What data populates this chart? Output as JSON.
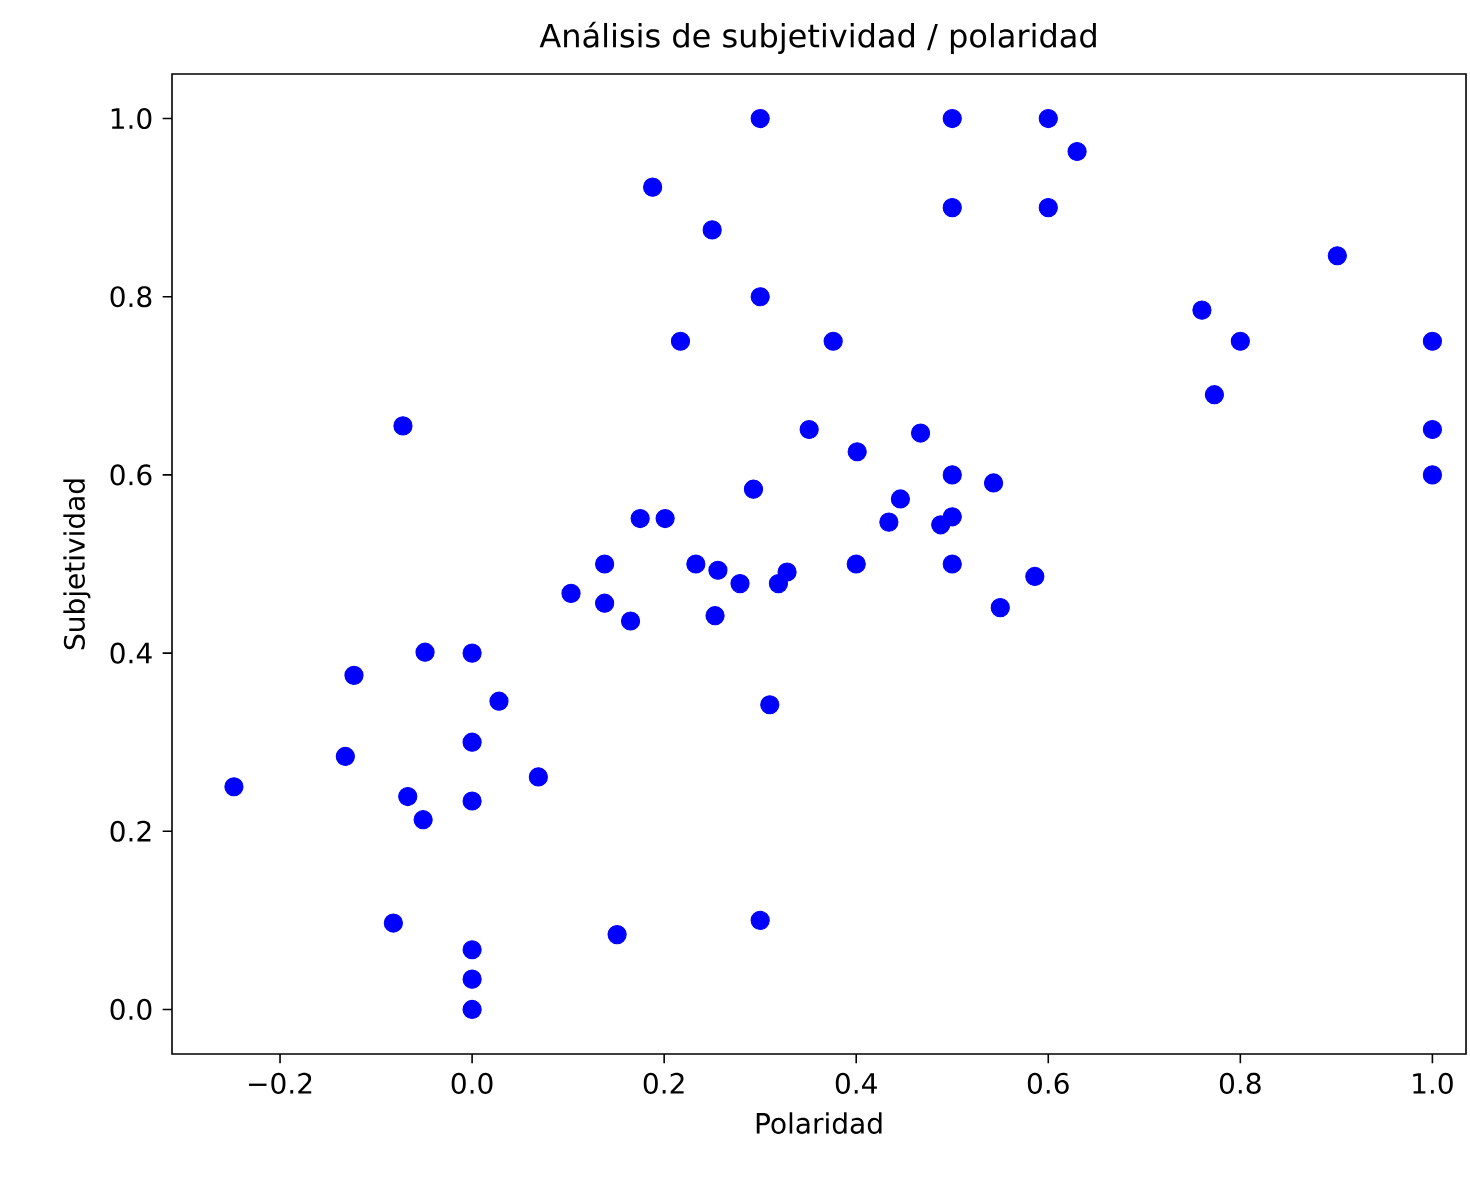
{
  "chart_data": {
    "type": "scatter",
    "title": "Análisis de subjetividad / polaridad",
    "xlabel": "Polaridad",
    "ylabel": "Subjetividad",
    "xlim": [
      -0.3125,
      1.035
    ],
    "ylim": [
      -0.05,
      1.05
    ],
    "xticks": [
      {
        "value": -0.2,
        "label": "−0.2"
      },
      {
        "value": 0.0,
        "label": "0.0"
      },
      {
        "value": 0.2,
        "label": "0.2"
      },
      {
        "value": 0.4,
        "label": "0.4"
      },
      {
        "value": 0.6,
        "label": "0.6"
      },
      {
        "value": 0.8,
        "label": "0.8"
      },
      {
        "value": 1.0,
        "label": "1.0"
      }
    ],
    "yticks": [
      {
        "value": 0.0,
        "label": "0.0"
      },
      {
        "value": 0.2,
        "label": "0.2"
      },
      {
        "value": 0.4,
        "label": "0.4"
      },
      {
        "value": 0.6,
        "label": "0.6"
      },
      {
        "value": 0.8,
        "label": "0.8"
      },
      {
        "value": 1.0,
        "label": "1.0"
      }
    ],
    "series": [
      {
        "color": "#0000ff",
        "x": [
          -0.072,
          0.103,
          -0.049,
          0.0,
          -0.123,
          0.028,
          0.0,
          -0.132,
          -0.248,
          0.069,
          -0.067,
          0.0,
          -0.051,
          -0.082,
          0.0,
          0.0,
          0.0,
          0.217,
          0.376,
          0.351,
          0.401,
          0.467,
          0.293,
          0.5,
          0.543,
          0.446,
          0.175,
          0.201,
          0.434,
          0.488,
          0.5,
          0.138,
          0.233,
          0.256,
          0.279,
          0.328,
          0.319,
          0.4,
          0.5,
          0.586,
          0.55,
          0.138,
          0.165,
          0.253,
          0.31,
          0.3,
          0.188,
          0.25,
          0.3,
          0.5,
          0.6,
          0.63,
          0.5,
          0.6,
          0.901,
          0.76,
          0.8,
          1.0,
          0.773,
          1.0,
          1.0,
          0.151,
          0.3
        ],
        "values": [
          0.655,
          0.467,
          0.401,
          0.4,
          0.375,
          0.346,
          0.3,
          0.284,
          0.25,
          0.261,
          0.239,
          0.234,
          0.213,
          0.097,
          0.067,
          0.034,
          0.0,
          0.75,
          0.75,
          0.651,
          0.626,
          0.647,
          0.584,
          0.6,
          0.591,
          0.573,
          0.551,
          0.551,
          0.547,
          0.544,
          0.553,
          0.5,
          0.5,
          0.493,
          0.478,
          0.491,
          0.478,
          0.5,
          0.5,
          0.486,
          0.451,
          0.456,
          0.436,
          0.442,
          0.342,
          1.0,
          0.923,
          0.875,
          0.8,
          1.0,
          1.0,
          0.963,
          0.9,
          0.9,
          0.846,
          0.785,
          0.75,
          0.75,
          0.69,
          0.651,
          0.6,
          0.084,
          0.1
        ]
      }
    ]
  }
}
